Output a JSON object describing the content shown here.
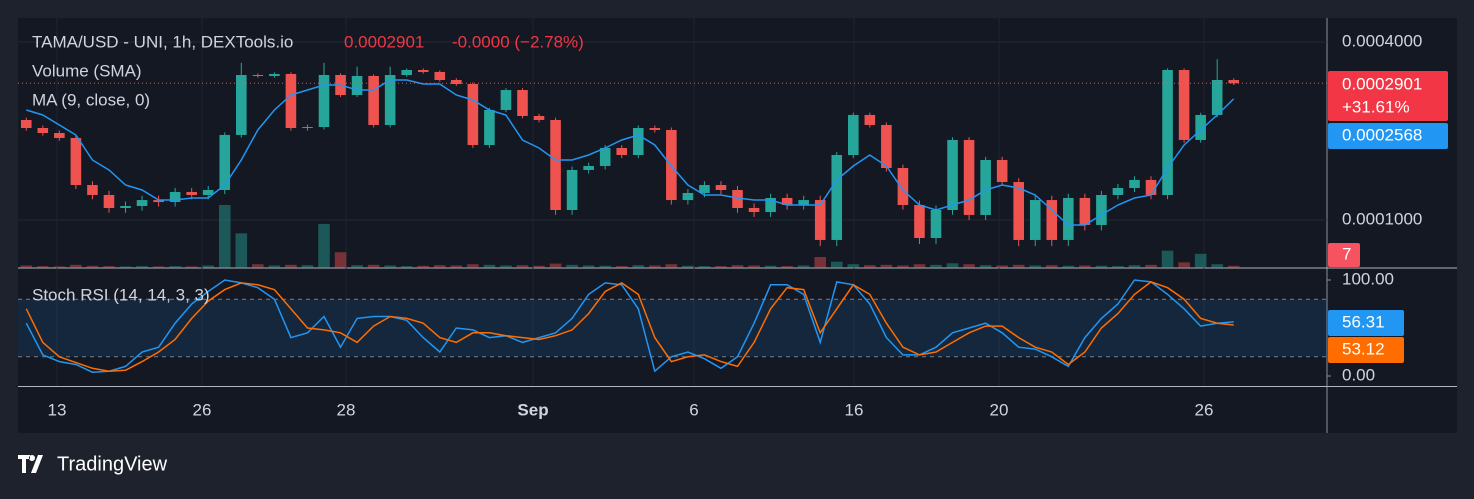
{
  "chart_data": {
    "type": "candlestick",
    "title": "TAMA/USD - UNI, 1h, DEXTools.io",
    "header_change": "-0.0000 (−2.78%)",
    "change_label": "+31.61%",
    "log_scale": true,
    "grid": true,
    "up_color": "#26a69a",
    "down_color": "#ef5350",
    "ylim": [
      6.88e-05,
      0.0004822
    ],
    "yticks": [
      {
        "value": 0.0004,
        "label": "0.0004000"
      },
      {
        "value": 0.0001,
        "label": "0.0001000"
      }
    ],
    "xtick_labels": [
      "13",
      "26",
      "28",
      "Sep",
      "6",
      "16",
      "20",
      "26"
    ],
    "open": [
      0.0002179,
      0.0002047,
      0.0001969,
      0.0001894,
      0.0001313,
      0.0001215,
      0.0001098,
      0.0001115,
      0.0001168,
      0.000115,
      0.0001244,
      0.0001215,
      0.0001263,
      0.0001939,
      0.0003093,
      0.000307,
      0.0003118,
      0.0002047,
      0.0002063,
      0.0003093,
      0.0002647,
      0.000307,
      0.0002096,
      0.0003093,
      0.0003216,
      0.0003167,
      0.0002975,
      0.0002884,
      0.0001793,
      0.0002356,
      0.0002752,
      0.0002248,
      0.0002179,
      0.0001081,
      0.0001476,
      0.0001523,
      0.0001752,
      0.0001659,
      0.0002047,
      0.0002016,
      0.0001168,
      0.0001234,
      0.0001313,
      0.0001263,
      0.0001098,
      0.0001064,
      0.0001187,
      0.0001124,
      0.0001168,
      8.56e-05,
      0.0001659,
      0.0002266,
      0.0002096,
      0.0001499,
      0.0001124,
      8.69e-05,
      0.0001081,
      0.0001865,
      0.000104,
      0.0001596,
      0.0001344,
      8.56e-05,
      0.0001168,
      8.56e-05,
      0.0001187,
      9.62e-05,
      0.0001215,
      0.0001283,
      0.0001366,
      0.0001215,
      0.0003216,
      0.0001865,
      0.0002266,
      0.0002975
    ],
    "high": [
      0.0002219,
      0.0002087,
      0.0002009,
      0.0001934,
      0.0001353,
      0.0001255,
      0.0001155,
      0.0001208,
      0.0001208,
      0.0001284,
      0.0001284,
      0.0001303,
      0.0001979,
      0.00034,
      0.0003133,
      0.0003158,
      0.0003158,
      0.0002103,
      0.00034,
      0.0003133,
      0.00033,
      0.000311,
      0.00033,
      0.0003256,
      0.0003256,
      0.0003207,
      0.0003015,
      0.0002924,
      0.0002396,
      0.0002792,
      0.0002792,
      0.0002288,
      0.0002219,
      0.0001516,
      0.0001563,
      0.0001792,
      0.0001792,
      0.0002087,
      0.0002087,
      0.0002056,
      0.0001274,
      0.0001353,
      0.0001353,
      0.0001303,
      0.0001138,
      0.0001227,
      0.0001227,
      0.0001208,
      0.0001208,
      0.0001699,
      0.0002306,
      0.0002306,
      0.0002136,
      0.0001539,
      0.0001164,
      0.0001121,
      0.0001905,
      0.0001905,
      0.0001636,
      0.0001636,
      0.0001384,
      0.0001208,
      0.0001208,
      0.0001227,
      0.0001227,
      0.0001255,
      0.0001323,
      0.0001406,
      0.0001406,
      0.0003256,
      0.0003256,
      0.0002306,
      0.00035,
      0.0003015
    ],
    "low": [
      0.0002007,
      0.0001929,
      0.0001854,
      0.0001273,
      0.0001175,
      0.0001058,
      0.0001058,
      0.0001075,
      0.000111,
      0.000111,
      0.0001175,
      0.0001175,
      0.0001223,
      0.0001899,
      0.000303,
      0.000303,
      0.0002007,
      0.0002007,
      0.0002023,
      0.0002607,
      0.0002607,
      0.0002056,
      0.0002056,
      0.0003053,
      0.0003127,
      0.0002935,
      0.0002844,
      0.0001753,
      0.0001753,
      0.0002316,
      0.0002208,
      0.0002139,
      0.0001041,
      0.0001041,
      0.0001436,
      0.0001483,
      0.0001619,
      0.0001619,
      0.0001976,
      0.0001128,
      0.0001128,
      0.0001194,
      0.0001223,
      0.0001058,
      0.0001024,
      0.0001024,
      0.0001084,
      0.0001084,
      8.16e-05,
      8.16e-05,
      0.0001619,
      0.0002056,
      0.0001459,
      0.0001084,
      8.29e-05,
      8.29e-05,
      0.0001041,
      0.0001,
      0.0001,
      0.0001304,
      8.16e-05,
      8.16e-05,
      8.16e-05,
      8.16e-05,
      9.22e-05,
      9.22e-05,
      0.0001175,
      0.0001243,
      0.0001175,
      0.0001175,
      0.0001825,
      0.0001825,
      0.0002226,
      0.0002861
    ],
    "close": [
      0.0002047,
      0.0001969,
      0.0001894,
      0.0001313,
      0.0001215,
      0.0001098,
      0.0001115,
      0.0001168,
      0.000115,
      0.0001244,
      0.0001215,
      0.0001263,
      0.0001939,
      0.0003093,
      0.000307,
      0.0003118,
      0.0002047,
      0.0002063,
      0.0003093,
      0.0002647,
      0.000307,
      0.0002096,
      0.0003093,
      0.0003216,
      0.0003167,
      0.0002975,
      0.0002884,
      0.0001793,
      0.0002356,
      0.0002752,
      0.0002248,
      0.0002179,
      0.0001081,
      0.0001476,
      0.0001523,
      0.0001752,
      0.0001659,
      0.0002047,
      0.0002016,
      0.0001168,
      0.0001234,
      0.0001313,
      0.0001263,
      0.0001098,
      0.0001064,
      0.0001187,
      0.0001124,
      0.0001168,
      8.56e-05,
      0.0001659,
      0.0002266,
      0.0002096,
      0.0001499,
      0.0001124,
      8.69e-05,
      0.0001081,
      0.0001865,
      0.000104,
      0.0001596,
      0.0001344,
      8.56e-05,
      0.0001168,
      8.56e-05,
      0.0001187,
      9.62e-05,
      0.0001215,
      0.0001283,
      0.0001366,
      0.0001215,
      0.0003216,
      0.0001865,
      0.0002266,
      0.0002975,
      0.0002901
    ],
    "ma": {
      "name": "MA (9, close, 0)",
      "color": "#2196f3",
      "values": [
        0.0002356,
        0.0002266,
        0.0002096,
        0.0001939,
        0.0001596,
        0.0001476,
        0.0001313,
        0.0001263,
        0.0001168,
        0.0001168,
        0.0001187,
        0.0001187,
        0.0001313,
        0.0001596,
        0.0002016,
        0.0002356,
        0.0002647,
        0.0002752,
        0.0002862,
        0.0002862,
        0.0002752,
        0.0002752,
        0.0002975,
        0.0002975,
        0.0002884,
        0.0002884,
        0.0002647,
        0.0002546,
        0.0002356,
        0.0002266,
        0.0001865,
        0.0001752,
        0.0001596,
        0.0001596,
        0.0001659,
        0.0001752,
        0.0001865,
        0.0001939,
        0.0001793,
        0.0001523,
        0.0001313,
        0.0001215,
        0.0001215,
        0.0001187,
        0.0001168,
        0.0001168,
        0.0001124,
        0.0001124,
        0.0001124,
        0.0001366,
        0.0001523,
        0.0001659,
        0.0001523,
        0.0001263,
        0.0001124,
        0.0001081,
        0.0001124,
        0.0001168,
        0.0001263,
        0.0001313,
        0.0001283,
        0.0001215,
        0.0001081,
        9.62e-05,
        9.62e-05,
        0.000104,
        0.0001124,
        0.0001187,
        0.0001215,
        0.0001499,
        0.0001793,
        0.0002016,
        0.0002266,
        0.0002568
      ]
    },
    "volume": {
      "name": "Volume (SMA)",
      "values": [
        8,
        6,
        5,
        10,
        7,
        6,
        5,
        6,
        5,
        6,
        5,
        8,
        200,
        110,
        12,
        8,
        10,
        9,
        140,
        50,
        9,
        10,
        8,
        6,
        7,
        9,
        8,
        12,
        10,
        8,
        9,
        7,
        14,
        10,
        8,
        7,
        6,
        9,
        8,
        12,
        7,
        6,
        6,
        9,
        8,
        7,
        6,
        8,
        35,
        20,
        12,
        9,
        10,
        8,
        12,
        10,
        15,
        12,
        9,
        8,
        10,
        8,
        9,
        7,
        8,
        7,
        6,
        9,
        10,
        55,
        18,
        45,
        12,
        7
      ]
    },
    "stoch": {
      "title": "Stoch RSI (14, 14, 3, 3)",
      "ylim": [
        -10.4,
        112.5
      ],
      "yticks": [
        {
          "value": 100,
          "label": "100.00"
        },
        {
          "value": 0,
          "label": "0.00"
        }
      ],
      "bands": [
        20,
        80
      ],
      "series": [
        {
          "color": "#2196f3",
          "values": [
            55,
            22,
            15,
            12,
            4,
            5,
            10,
            25,
            30,
            55,
            75,
            88,
            100,
            97,
            92,
            80,
            40,
            45,
            62,
            30,
            60,
            62,
            62,
            58,
            40,
            25,
            50,
            48,
            40,
            42,
            35,
            40,
            45,
            60,
            85,
            97,
            95,
            70,
            5,
            20,
            25,
            18,
            8,
            20,
            55,
            95,
            95,
            85,
            35,
            98,
            95,
            75,
            40,
            22,
            22,
            30,
            45,
            50,
            55,
            45,
            30,
            28,
            20,
            10,
            40,
            60,
            75,
            100,
            98,
            85,
            70,
            52,
            55,
            56.31
          ]
        },
        {
          "color": "#ff6d00",
          "values": [
            70,
            35,
            20,
            14,
            8,
            5,
            6,
            15,
            25,
            38,
            60,
            78,
            90,
            97,
            95,
            90,
            70,
            50,
            48,
            45,
            35,
            52,
            62,
            60,
            55,
            40,
            35,
            45,
            45,
            42,
            40,
            38,
            42,
            48,
            65,
            88,
            97,
            85,
            40,
            15,
            20,
            22,
            15,
            10,
            35,
            70,
            92,
            90,
            45,
            70,
            95,
            85,
            55,
            30,
            22,
            25,
            35,
            45,
            52,
            52,
            40,
            30,
            25,
            12,
            25,
            50,
            65,
            85,
            98,
            92,
            80,
            60,
            55,
            53.12
          ]
        }
      ]
    }
  },
  "brand": "TradingView"
}
